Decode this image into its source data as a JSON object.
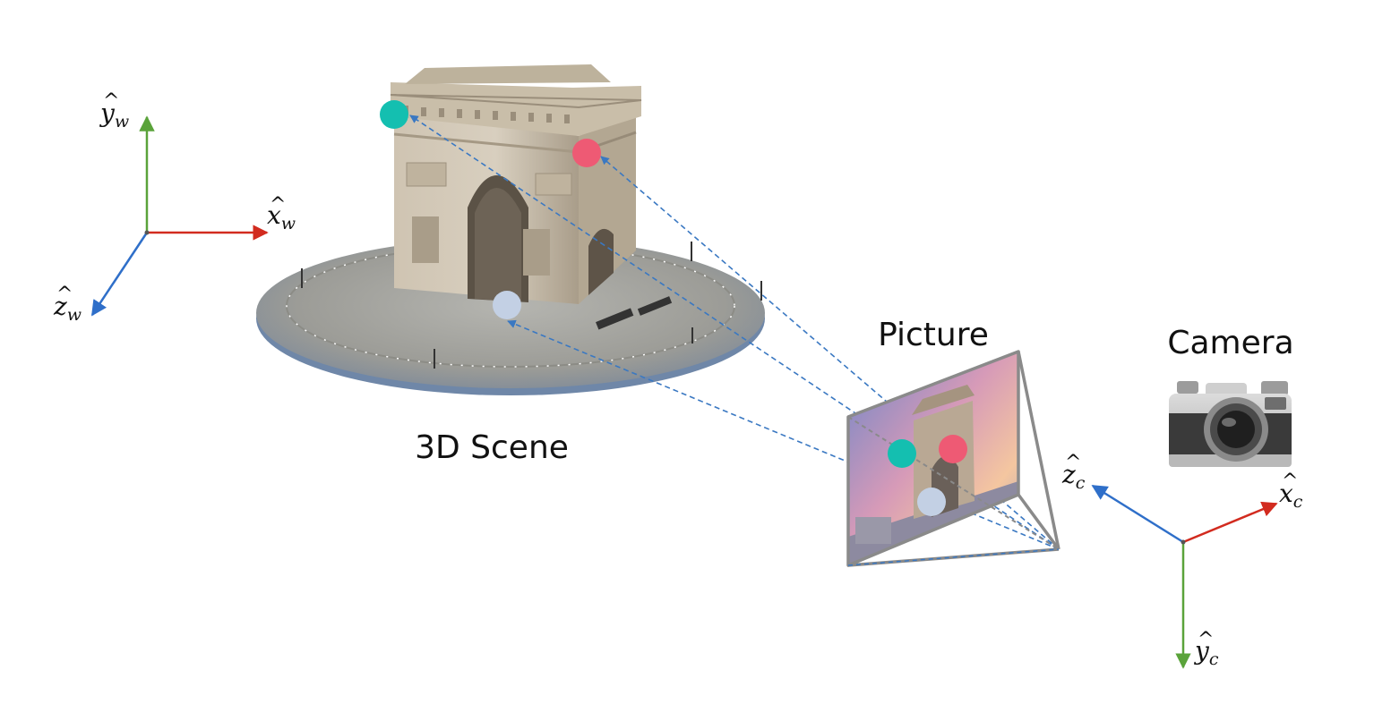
{
  "labels": {
    "scene": "3D Scene",
    "picture": "Picture",
    "camera": "Camera"
  },
  "world_axes": {
    "y": {
      "base": "y",
      "sub": "w",
      "color": "#5aa33a"
    },
    "x": {
      "base": "x",
      "sub": "w",
      "color": "#d22b1f"
    },
    "z": {
      "base": "z",
      "sub": "w",
      "color": "#2f6fc9"
    }
  },
  "camera_axes": {
    "z": {
      "base": "z",
      "sub": "c",
      "color": "#2f6fc9"
    },
    "x": {
      "base": "x",
      "sub": "c",
      "color": "#d22b1f"
    },
    "y": {
      "base": "y",
      "sub": "c",
      "color": "#5aa33a"
    }
  },
  "point_colors": {
    "teal": "#14bfb0",
    "pink": "#ee5a74",
    "lavender": "#c3d0e4"
  },
  "ray_color": "#3a78c2",
  "frustum_color": "#8a8a8a"
}
